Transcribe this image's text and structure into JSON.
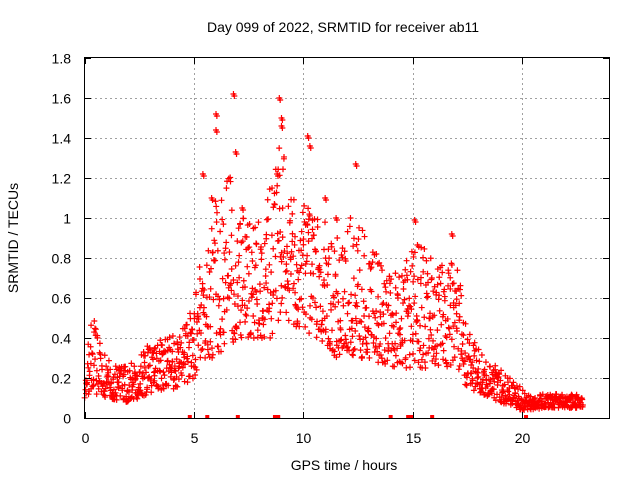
{
  "chart_data": {
    "type": "scatter",
    "title": "Day 099 of 2022, SRMTID for receiver ab11",
    "xlabel": "GPS time / hours",
    "ylabel": "SRMTID / TECUs",
    "xlim": [
      0,
      24
    ],
    "ylim": [
      0,
      1.8
    ],
    "xticks": [
      0,
      5,
      10,
      15,
      20
    ],
    "yticks": [
      0,
      0.2,
      0.4,
      0.6,
      0.8,
      1,
      1.2,
      1.4,
      1.6,
      1.8
    ],
    "xtick_labels": [
      "0",
      "5",
      "10",
      "15",
      "20"
    ],
    "ytick_labels": [
      "0",
      "0.2",
      "0.4",
      "0.6",
      "0.8",
      "1",
      "1.2",
      "1.4",
      "1.6",
      "1.8"
    ],
    "grid": true,
    "marker": "+",
    "color": "#ff0000",
    "series": [
      {
        "name": "SRMTID",
        "envelope": {
          "x": [
            0.0,
            0.3,
            0.6,
            1.0,
            1.5,
            2.0,
            2.5,
            3.0,
            3.5,
            4.0,
            4.5,
            5.0,
            5.3,
            5.6,
            6.0,
            6.5,
            7.0,
            7.5,
            8.0,
            8.5,
            9.0,
            9.5,
            10.0,
            10.5,
            11.0,
            11.5,
            12.0,
            12.5,
            13.0,
            13.5,
            14.0,
            14.5,
            15.0,
            15.5,
            16.0,
            16.5,
            17.0,
            17.5,
            18.0,
            18.5,
            19.0,
            19.5,
            20.0,
            20.5,
            21.0,
            21.5,
            22.0,
            22.5,
            22.8
          ],
          "low": [
            0.1,
            0.1,
            0.12,
            0.1,
            0.08,
            0.08,
            0.1,
            0.12,
            0.14,
            0.14,
            0.16,
            0.2,
            0.3,
            0.3,
            0.3,
            0.35,
            0.4,
            0.4,
            0.4,
            0.4,
            0.45,
            0.45,
            0.45,
            0.4,
            0.35,
            0.3,
            0.3,
            0.3,
            0.3,
            0.25,
            0.25,
            0.25,
            0.25,
            0.25,
            0.25,
            0.25,
            0.25,
            0.15,
            0.12,
            0.1,
            0.08,
            0.06,
            0.04,
            0.04,
            0.05,
            0.05,
            0.05,
            0.05,
            0.05
          ],
          "high": [
            0.2,
            0.55,
            0.4,
            0.32,
            0.25,
            0.28,
            0.32,
            0.38,
            0.4,
            0.42,
            0.45,
            0.6,
            0.8,
            1.0,
            1.1,
            1.3,
            1.0,
            1.0,
            1.0,
            1.2,
            1.4,
            1.1,
            1.1,
            1.0,
            1.0,
            0.9,
            1.0,
            1.0,
            0.9,
            0.8,
            0.7,
            0.8,
            0.9,
            0.85,
            0.8,
            0.75,
            0.8,
            0.45,
            0.35,
            0.28,
            0.25,
            0.2,
            0.15,
            0.12,
            0.12,
            0.12,
            0.12,
            0.12,
            0.12
          ]
        },
        "peaks": [
          {
            "x": 6.8,
            "y": 1.62
          },
          {
            "x": 6.0,
            "y": 1.52
          },
          {
            "x": 6.0,
            "y": 1.44
          },
          {
            "x": 8.9,
            "y": 1.6
          },
          {
            "x": 9.0,
            "y": 1.5
          },
          {
            "x": 9.0,
            "y": 1.46
          },
          {
            "x": 10.2,
            "y": 1.41
          },
          {
            "x": 10.3,
            "y": 1.36
          },
          {
            "x": 6.9,
            "y": 1.33
          },
          {
            "x": 12.4,
            "y": 1.27
          },
          {
            "x": 5.4,
            "y": 1.22
          },
          {
            "x": 8.8,
            "y": 1.22
          },
          {
            "x": 5.8,
            "y": 1.1
          },
          {
            "x": 7.2,
            "y": 1.05
          },
          {
            "x": 11.0,
            "y": 1.1
          },
          {
            "x": 11.5,
            "y": 1.0
          },
          {
            "x": 15.1,
            "y": 0.99
          },
          {
            "x": 16.8,
            "y": 0.92
          }
        ]
      }
    ],
    "gap_markers_x": [
      4.8,
      5.6,
      7.0,
      8.7,
      8.85,
      14.0,
      14.8,
      14.95,
      15.9,
      20.2
    ]
  }
}
